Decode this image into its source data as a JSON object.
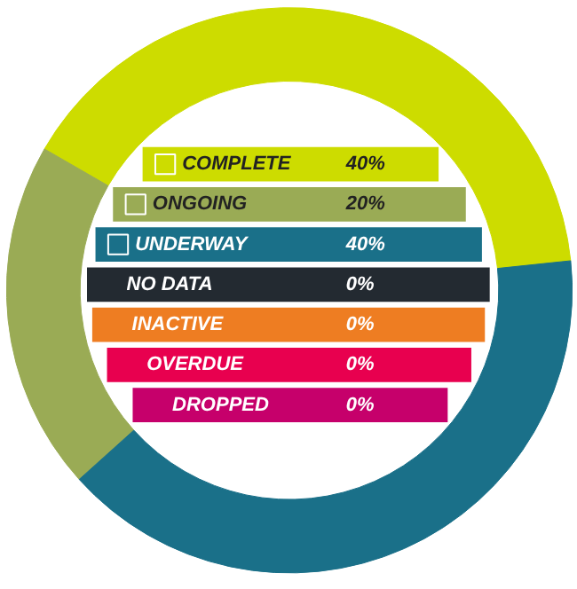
{
  "chart_data": {
    "type": "donut",
    "categories": [
      "COMPLETE",
      "ONGOING",
      "UNDERWAY",
      "NO DATA",
      "INACTIVE",
      "OVERDUE",
      "DROPPED"
    ],
    "values": [
      40,
      20,
      40,
      0,
      0,
      0,
      0
    ],
    "value_labels": [
      "40%",
      "20%",
      "40%",
      "0%",
      "0%",
      "0%",
      "0%"
    ],
    "colors": [
      "#cddc00",
      "#9aab55",
      "#1a7089",
      "#232a31",
      "#ee7d22",
      "#e8004f",
      "#c6006b"
    ],
    "legend": "center"
  }
}
